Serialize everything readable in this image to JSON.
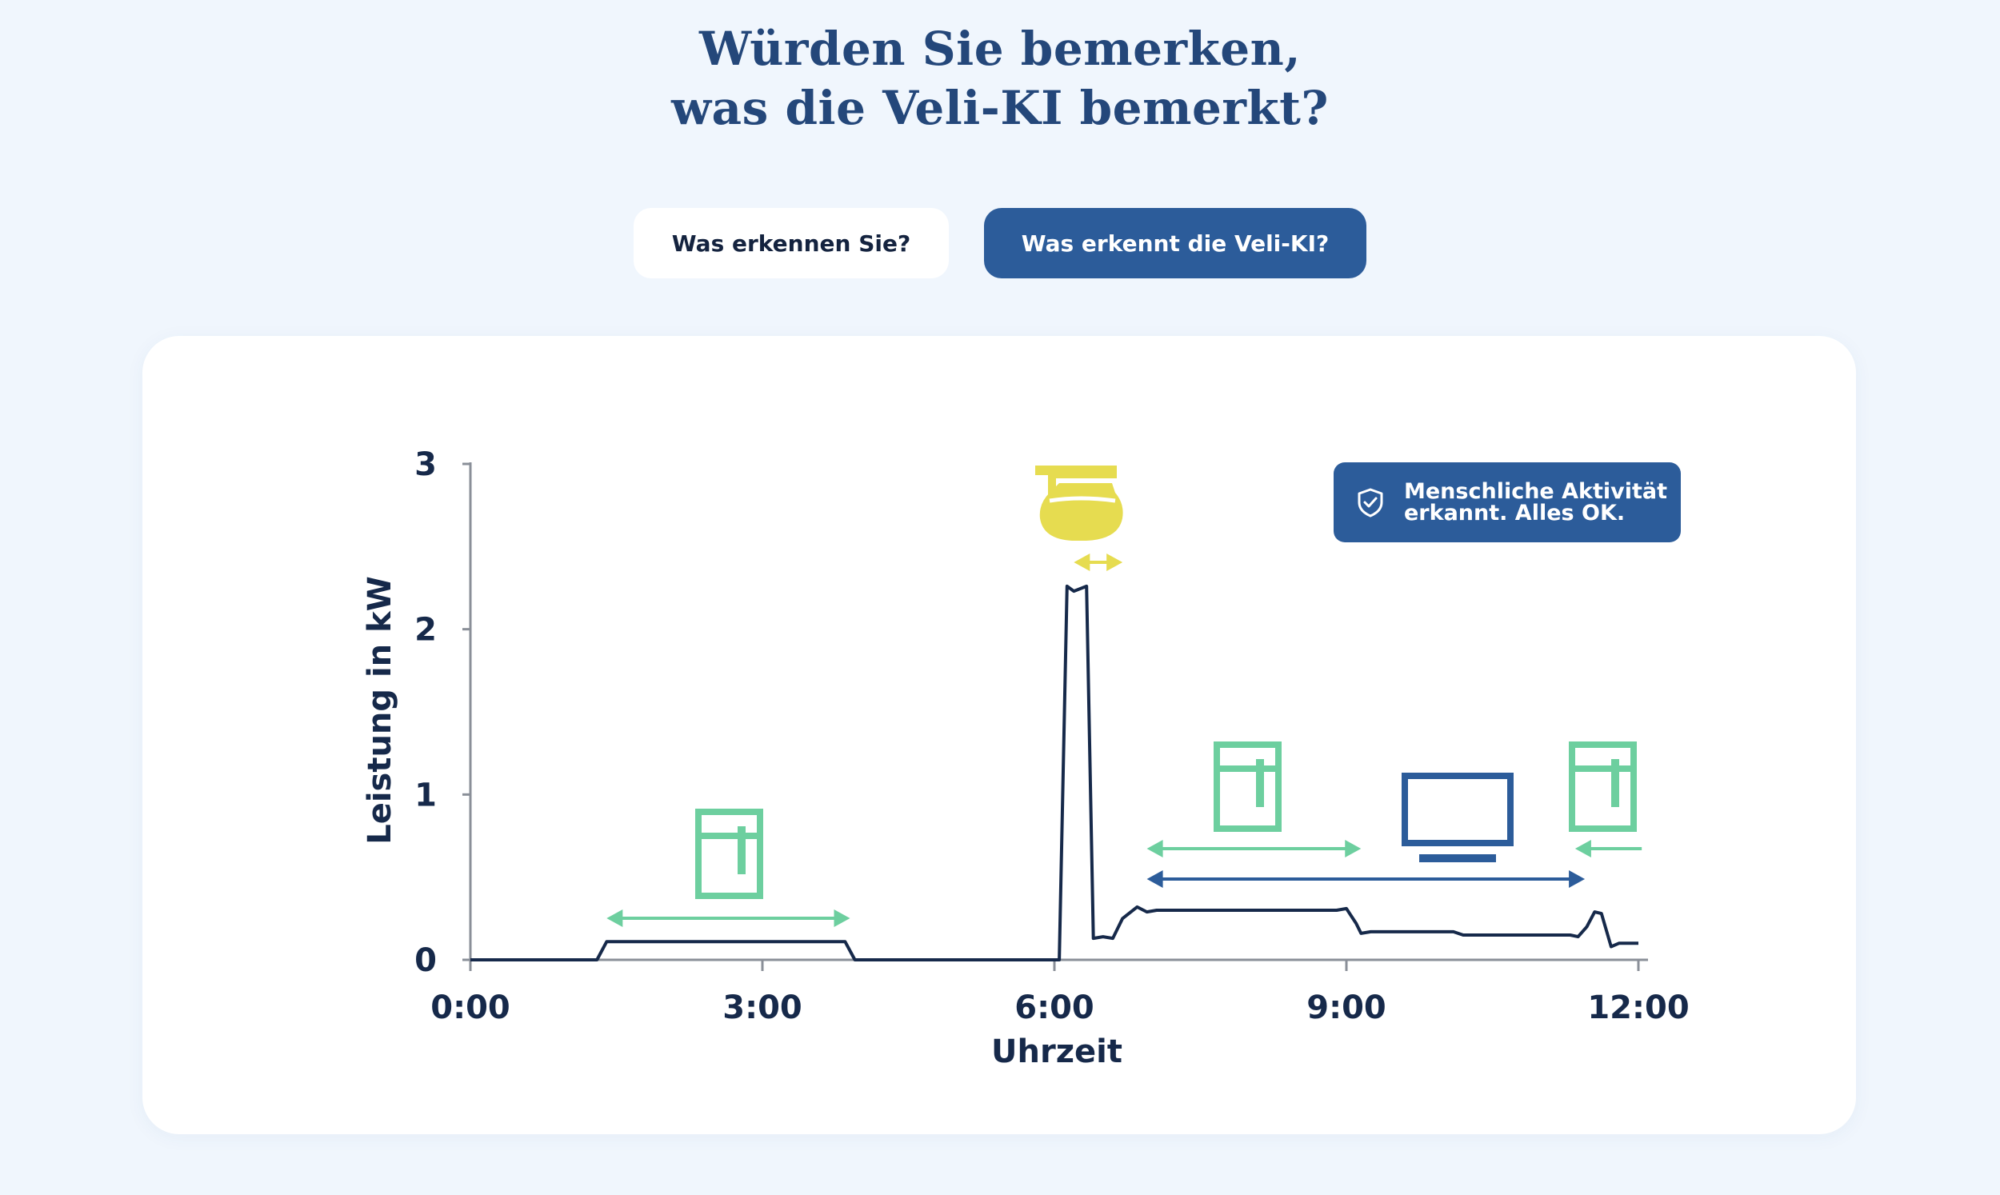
{
  "header": {
    "title_line1": "Würden Sie bemerken,",
    "title_line2": "was die Veli-KI bemerkt?"
  },
  "tabs": [
    {
      "label": "Was erkennen Sie?",
      "active": false
    },
    {
      "label": "Was erkennt die Veli-KI?",
      "active": true
    }
  ],
  "badge": {
    "line1": "Menschliche Aktivität",
    "line2": "erkannt. Alles OK.",
    "icon": "shield-check-icon"
  },
  "colors": {
    "line": "#16294a",
    "fridge": "#6dcf9f",
    "coffee": "#e6dc50",
    "tv": "#2c5c9a",
    "axis": "#8a8f98"
  },
  "chart_data": {
    "type": "line",
    "title": "",
    "xlabel": "Uhrzeit",
    "ylabel": "Leistung in kW",
    "xlim": [
      0,
      12
    ],
    "ylim": [
      0,
      3
    ],
    "x_ticks": [
      0,
      3,
      6,
      9,
      12
    ],
    "x_tick_labels": [
      "0:00",
      "3:00",
      "6:00",
      "9:00",
      "12:00"
    ],
    "y_ticks": [
      0,
      1,
      2,
      3
    ],
    "y_tick_labels": [
      "0",
      "1",
      "2",
      "3"
    ],
    "series": [
      {
        "name": "Leistung",
        "x": [
          0,
          1.3,
          1.4,
          3.85,
          3.95,
          6.05,
          6.13,
          6.2,
          6.33,
          6.4,
          6.5,
          6.6,
          6.7,
          6.85,
          6.95,
          7.05,
          7.2,
          8.9,
          9.0,
          9.1,
          9.15,
          9.25,
          10.0,
          10.1,
          10.2,
          11.3,
          11.38,
          11.47,
          11.55,
          11.62,
          11.72,
          11.8,
          12.0
        ],
        "y": [
          0,
          0,
          0.11,
          0.11,
          0,
          0,
          2.26,
          2.23,
          2.26,
          0.13,
          0.14,
          0.13,
          0.25,
          0.32,
          0.29,
          0.3,
          0.3,
          0.3,
          0.31,
          0.22,
          0.16,
          0.17,
          0.17,
          0.17,
          0.15,
          0.15,
          0.14,
          0.2,
          0.29,
          0.28,
          0.08,
          0.1,
          0.1
        ]
      }
    ],
    "appliances": [
      {
        "name": "Kühlschrank",
        "icon": "fridge-icon",
        "from": 1.4,
        "to": 3.9
      },
      {
        "name": "Kaffeemaschine",
        "icon": "coffee-pot-icon",
        "from": 6.2,
        "to": 6.7
      },
      {
        "name": "Kühlschrank",
        "icon": "fridge-icon",
        "from": 6.95,
        "to": 9.15
      },
      {
        "name": "Fernseher",
        "icon": "tv-icon",
        "from": 6.95,
        "to": 11.45
      },
      {
        "name": "Kühlschrank",
        "icon": "fridge-icon",
        "from": 11.35,
        "to": 12.1
      }
    ]
  }
}
